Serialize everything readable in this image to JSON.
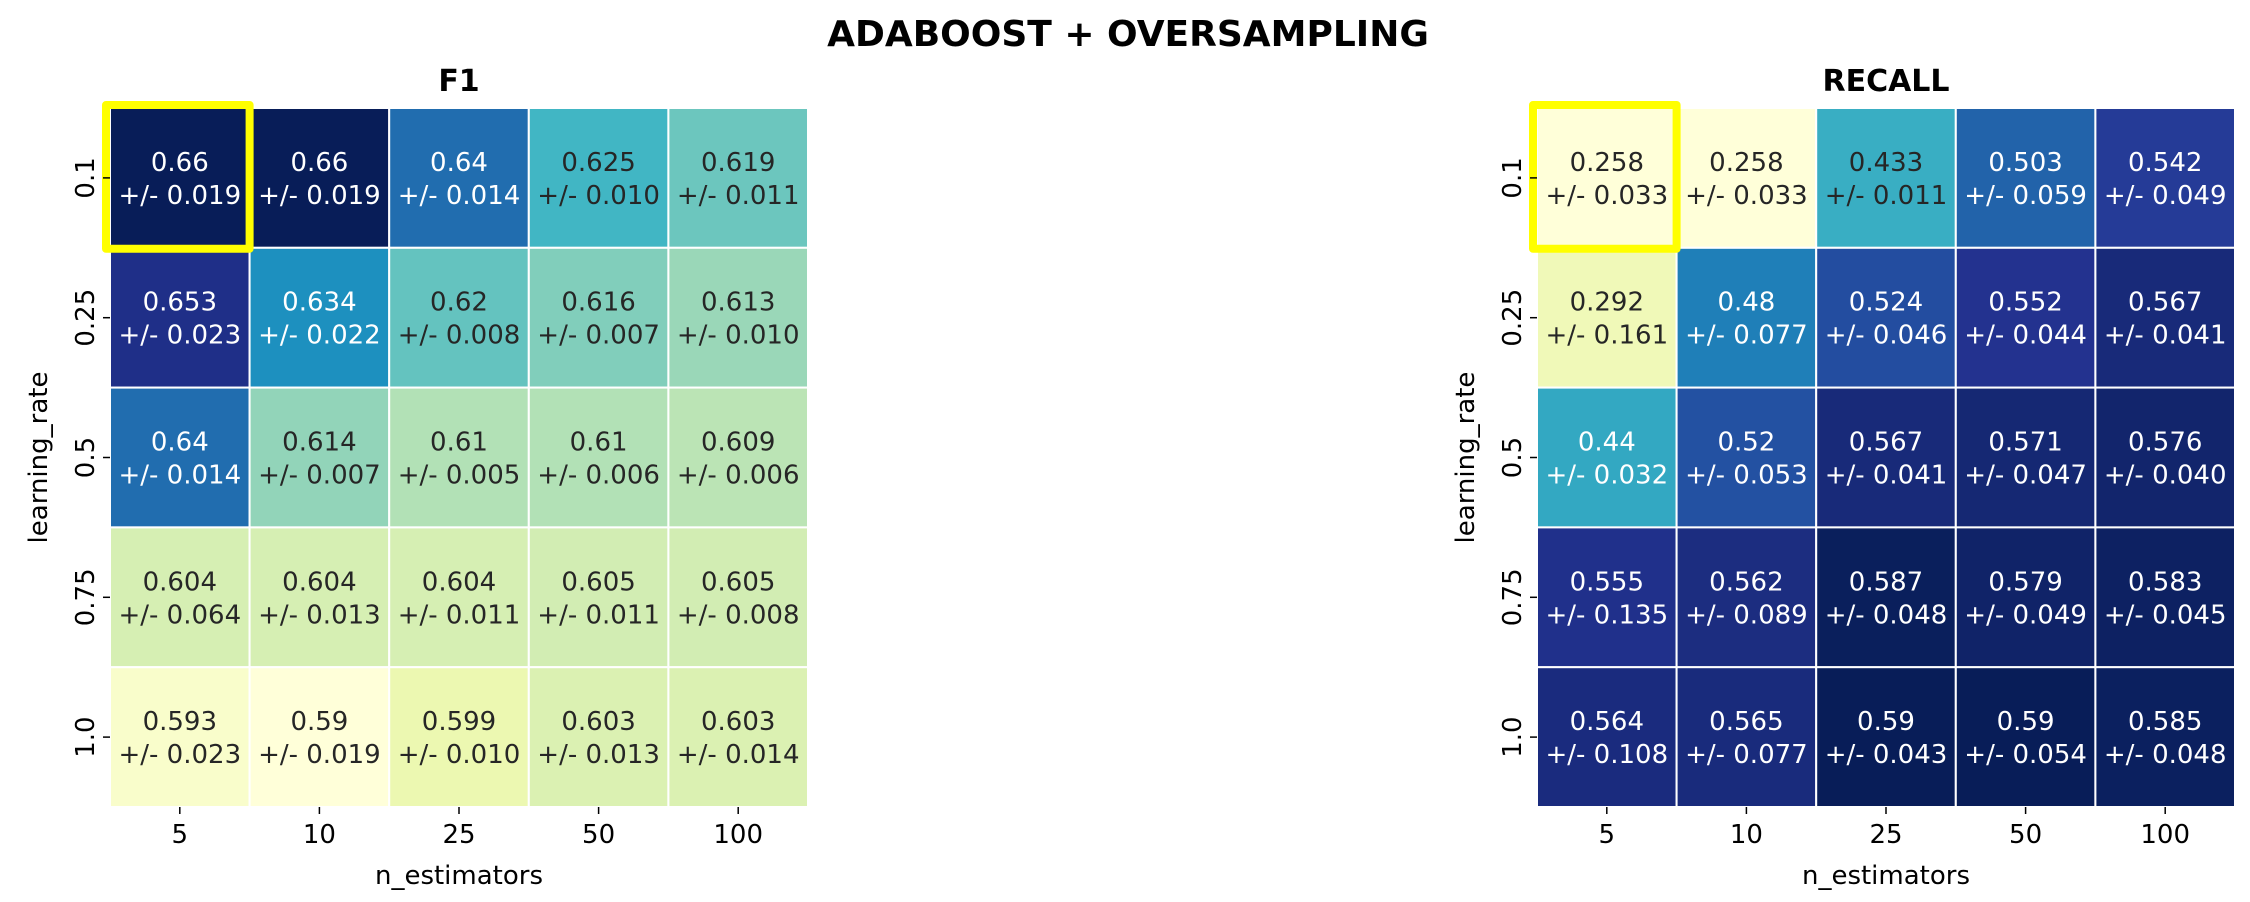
{
  "figure_title": "ADABOOST + OVERSAMPLING",
  "chart_data": [
    {
      "type": "heatmap",
      "title": "F1",
      "xlabel": "n_estimators",
      "ylabel": "learning_rate",
      "x": [
        "5",
        "10",
        "25",
        "50",
        "100"
      ],
      "y": [
        "0.1",
        "0.25",
        "0.5",
        "0.75",
        "1.0"
      ],
      "colormap": "YlGnBu",
      "color_range": [
        0.59,
        0.66
      ],
      "highlight_cell": {
        "row": 0,
        "col": 0,
        "color": "#ffff00"
      },
      "mean": [
        [
          0.66,
          0.66,
          0.64,
          0.625,
          0.619
        ],
        [
          0.653,
          0.634,
          0.62,
          0.616,
          0.613
        ],
        [
          0.64,
          0.614,
          0.61,
          0.61,
          0.609
        ],
        [
          0.604,
          0.604,
          0.604,
          0.605,
          0.605
        ],
        [
          0.593,
          0.59,
          0.599,
          0.603,
          0.603
        ]
      ],
      "std": [
        [
          "0.019",
          "0.019",
          "0.014",
          "0.010",
          "0.011"
        ],
        [
          "0.023",
          "0.022",
          "0.008",
          "0.007",
          "0.010"
        ],
        [
          "0.014",
          "0.007",
          "0.005",
          "0.006",
          "0.006"
        ],
        [
          "0.064",
          "0.013",
          "0.011",
          "0.011",
          "0.008"
        ],
        [
          "0.023",
          "0.019",
          "0.010",
          "0.013",
          "0.014"
        ]
      ]
    },
    {
      "type": "heatmap",
      "title": "RECALL",
      "xlabel": "n_estimators",
      "ylabel": "learning_rate",
      "x": [
        "5",
        "10",
        "25",
        "50",
        "100"
      ],
      "y": [
        "0.1",
        "0.25",
        "0.5",
        "0.75",
        "1.0"
      ],
      "colormap": "YlGnBu",
      "color_range": [
        0.258,
        0.59
      ],
      "highlight_cell": {
        "row": 0,
        "col": 0,
        "color": "#ffff00"
      },
      "mean": [
        [
          0.258,
          0.258,
          0.433,
          0.503,
          0.542
        ],
        [
          0.292,
          0.48,
          0.524,
          0.552,
          0.567
        ],
        [
          0.44,
          0.52,
          0.567,
          0.571,
          0.576
        ],
        [
          0.555,
          0.562,
          0.587,
          0.579,
          0.583
        ],
        [
          0.564,
          0.565,
          0.59,
          0.59,
          0.585
        ]
      ],
      "std": [
        [
          "0.033",
          "0.033",
          "0.011",
          "0.059",
          "0.049"
        ],
        [
          "0.161",
          "0.077",
          "0.046",
          "0.044",
          "0.041"
        ],
        [
          "0.032",
          "0.053",
          "0.041",
          "0.047",
          "0.040"
        ],
        [
          "0.135",
          "0.089",
          "0.048",
          "0.049",
          "0.045"
        ],
        [
          "0.108",
          "0.077",
          "0.043",
          "0.054",
          "0.048"
        ]
      ]
    }
  ]
}
